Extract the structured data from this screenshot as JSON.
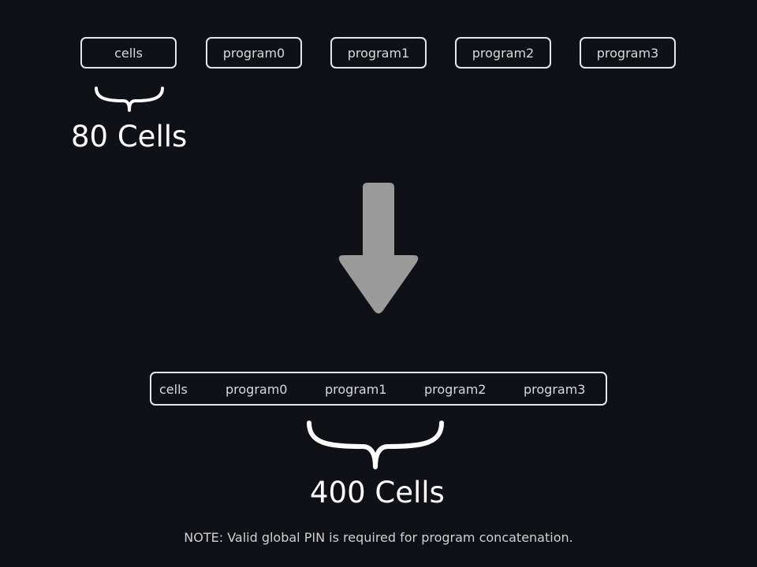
{
  "top_row": {
    "segments": [
      "cells",
      "program0",
      "program1",
      "program2",
      "program3"
    ]
  },
  "combined_row": {
    "segments": [
      "cells",
      "program0",
      "program1",
      "program2",
      "program3"
    ]
  },
  "small_label": "80 Cells",
  "large_label": "400 Cells",
  "note": "NOTE: Valid global PIN is required for program concatenation.",
  "colors": {
    "background": "#0f1117",
    "box_border": "#e6e6e6",
    "arrow_fill": "#9a9a9a",
    "text": "#ffffff"
  }
}
